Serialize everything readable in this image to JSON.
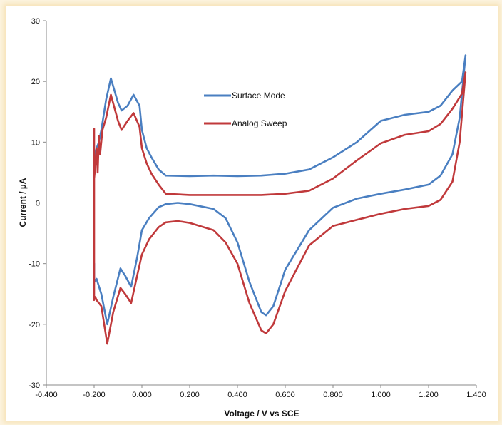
{
  "chart_data": {
    "type": "line",
    "title": "",
    "xlabel": "Voltage / V vs SCE",
    "ylabel": "Current / µA",
    "xlim": [
      -0.4,
      1.4
    ],
    "ylim": [
      -30,
      30
    ],
    "x_ticks": [
      "-0.400",
      "-0.200",
      "0.000",
      "0.200",
      "0.400",
      "0.600",
      "0.800",
      "1.000",
      "1.200",
      "1.400"
    ],
    "x_tick_values": [
      -0.4,
      -0.2,
      0.0,
      0.2,
      0.4,
      0.6,
      0.8,
      1.0,
      1.2,
      1.4
    ],
    "y_ticks": [
      "30",
      "20",
      "10",
      "0",
      "-10",
      "-20",
      "-30"
    ],
    "y_tick_values": [
      30,
      20,
      10,
      0,
      -10,
      -20,
      -30
    ],
    "grid": false,
    "legend_position": "top-center",
    "series": [
      {
        "name": "Surface Mode",
        "color": "#4a7fc1",
        "points": [
          [
            -0.2,
            -10.0
          ],
          [
            -0.2,
            -13.0
          ],
          [
            -0.19,
            -12.5
          ],
          [
            -0.17,
            -15.0
          ],
          [
            -0.145,
            -20.0
          ],
          [
            -0.12,
            -15.5
          ],
          [
            -0.09,
            -10.8
          ],
          [
            -0.07,
            -12.0
          ],
          [
            -0.045,
            -13.8
          ],
          [
            -0.02,
            -9.0
          ],
          [
            0.0,
            -4.5
          ],
          [
            0.03,
            -2.5
          ],
          [
            0.07,
            -0.7
          ],
          [
            0.1,
            -0.2
          ],
          [
            0.15,
            0.0
          ],
          [
            0.2,
            -0.2
          ],
          [
            0.3,
            -1.0
          ],
          [
            0.35,
            -2.5
          ],
          [
            0.4,
            -6.5
          ],
          [
            0.45,
            -13.0
          ],
          [
            0.5,
            -18.0
          ],
          [
            0.52,
            -18.5
          ],
          [
            0.55,
            -17.0
          ],
          [
            0.6,
            -11.0
          ],
          [
            0.7,
            -4.5
          ],
          [
            0.8,
            -0.8
          ],
          [
            0.9,
            0.7
          ],
          [
            1.0,
            1.5
          ],
          [
            1.1,
            2.2
          ],
          [
            1.2,
            3.0
          ],
          [
            1.25,
            4.5
          ],
          [
            1.3,
            8.0
          ],
          [
            1.33,
            14.0
          ],
          [
            1.355,
            24.3
          ],
          [
            1.34,
            20.0
          ],
          [
            1.3,
            18.5
          ],
          [
            1.25,
            16.0
          ],
          [
            1.2,
            15.0
          ],
          [
            1.1,
            14.5
          ],
          [
            1.0,
            13.5
          ],
          [
            0.9,
            10.0
          ],
          [
            0.8,
            7.5
          ],
          [
            0.7,
            5.5
          ],
          [
            0.6,
            4.8
          ],
          [
            0.5,
            4.5
          ],
          [
            0.4,
            4.4
          ],
          [
            0.3,
            4.5
          ],
          [
            0.2,
            4.4
          ],
          [
            0.1,
            4.5
          ],
          [
            0.07,
            5.5
          ],
          [
            0.04,
            7.5
          ],
          [
            0.02,
            9.0
          ],
          [
            0.0,
            12.0
          ],
          [
            -0.01,
            16.0
          ],
          [
            -0.035,
            17.8
          ],
          [
            -0.06,
            16.0
          ],
          [
            -0.085,
            15.2
          ],
          [
            -0.1,
            16.5
          ],
          [
            -0.13,
            20.5
          ],
          [
            -0.15,
            17.0
          ],
          [
            -0.17,
            12.0
          ],
          [
            -0.18,
            10.0
          ],
          [
            -0.19,
            9.0
          ],
          [
            -0.2,
            7.5
          ]
        ]
      },
      {
        "name": "Analog Sweep",
        "color": "#c0393b",
        "points": [
          [
            -0.2,
            12.2
          ],
          [
            -0.2,
            -16.0
          ],
          [
            -0.195,
            -15.5
          ],
          [
            -0.19,
            -16.0
          ],
          [
            -0.17,
            -17.0
          ],
          [
            -0.145,
            -23.2
          ],
          [
            -0.12,
            -18.0
          ],
          [
            -0.09,
            -14.0
          ],
          [
            -0.07,
            -15.0
          ],
          [
            -0.045,
            -16.5
          ],
          [
            -0.02,
            -12.0
          ],
          [
            0.0,
            -8.5
          ],
          [
            0.03,
            -6.0
          ],
          [
            0.07,
            -4.0
          ],
          [
            0.1,
            -3.2
          ],
          [
            0.15,
            -3.0
          ],
          [
            0.2,
            -3.3
          ],
          [
            0.3,
            -4.5
          ],
          [
            0.35,
            -6.5
          ],
          [
            0.4,
            -10.0
          ],
          [
            0.45,
            -16.5
          ],
          [
            0.5,
            -21.0
          ],
          [
            0.52,
            -21.5
          ],
          [
            0.55,
            -20.0
          ],
          [
            0.6,
            -14.5
          ],
          [
            0.7,
            -7.0
          ],
          [
            0.8,
            -3.8
          ],
          [
            0.9,
            -2.8
          ],
          [
            1.0,
            -1.8
          ],
          [
            1.1,
            -1.0
          ],
          [
            1.2,
            -0.5
          ],
          [
            1.25,
            0.5
          ],
          [
            1.3,
            3.5
          ],
          [
            1.33,
            10.0
          ],
          [
            1.355,
            21.5
          ],
          [
            1.34,
            18.0
          ],
          [
            1.3,
            15.5
          ],
          [
            1.25,
            13.0
          ],
          [
            1.2,
            11.8
          ],
          [
            1.1,
            11.2
          ],
          [
            1.0,
            9.8
          ],
          [
            0.9,
            7.0
          ],
          [
            0.8,
            4.0
          ],
          [
            0.7,
            2.0
          ],
          [
            0.6,
            1.5
          ],
          [
            0.5,
            1.3
          ],
          [
            0.4,
            1.3
          ],
          [
            0.3,
            1.3
          ],
          [
            0.2,
            1.3
          ],
          [
            0.1,
            1.5
          ],
          [
            0.07,
            3.0
          ],
          [
            0.04,
            4.8
          ],
          [
            0.02,
            6.5
          ],
          [
            0.0,
            9.0
          ],
          [
            -0.01,
            12.5
          ],
          [
            -0.035,
            14.8
          ],
          [
            -0.06,
            13.5
          ],
          [
            -0.085,
            12.0
          ],
          [
            -0.1,
            13.5
          ],
          [
            -0.13,
            17.8
          ],
          [
            -0.15,
            14.0
          ],
          [
            -0.165,
            12.0
          ],
          [
            -0.175,
            8.0
          ],
          [
            -0.18,
            11.0
          ],
          [
            -0.185,
            5.0
          ],
          [
            -0.19,
            9.0
          ],
          [
            -0.195,
            6.0
          ],
          [
            -0.2,
            4.0
          ]
        ]
      }
    ]
  }
}
